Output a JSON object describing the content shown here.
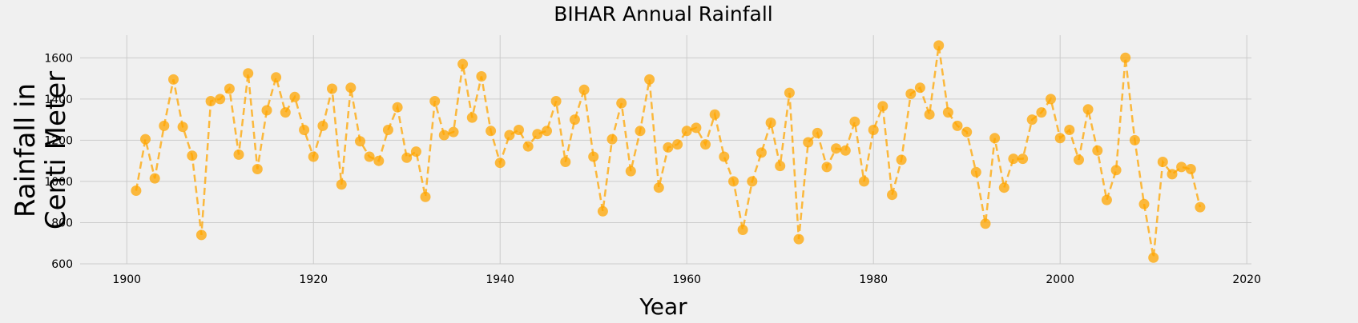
{
  "chart_data": {
    "type": "line",
    "title": "BIHAR Annual Rainfall",
    "xlabel": "Year",
    "ylabel_lines": [
      "Rainfall in",
      "Centi Meter"
    ],
    "xlim": [
      1895,
      2020.5
    ],
    "ylim": [
      600,
      1710
    ],
    "xticks": [
      1900,
      1920,
      1940,
      1960,
      1980,
      2000,
      2020
    ],
    "yticks": [
      600,
      800,
      1000,
      1200,
      1400,
      1600
    ],
    "grid": true,
    "line_style": "dashed",
    "marker": "circle",
    "color": "#ffa500",
    "series": [
      {
        "x": [
          1901,
          1902,
          1903,
          1904,
          1905,
          1906,
          1907,
          1908,
          1909,
          1910,
          1911,
          1912,
          1913,
          1914,
          1915,
          1916,
          1917,
          1918,
          1919,
          1920,
          1921,
          1922,
          1923,
          1924,
          1925,
          1926,
          1927,
          1928,
          1929,
          1930,
          1931,
          1932,
          1933,
          1934,
          1935,
          1936,
          1937,
          1938,
          1939,
          1940,
          1941,
          1942,
          1943,
          1944,
          1945,
          1946,
          1947,
          1948,
          1949,
          1950,
          1951,
          1952,
          1953,
          1954,
          1955,
          1956,
          1957,
          1958,
          1959,
          1960,
          1961,
          1962,
          1963,
          1964,
          1965,
          1966,
          1967,
          1968,
          1969,
          1970,
          1971,
          1972,
          1973,
          1974,
          1975,
          1976,
          1977,
          1978,
          1979,
          1980,
          1981,
          1982,
          1983,
          1984,
          1985,
          1986,
          1987,
          1988,
          1989,
          1990,
          1991,
          1992,
          1993,
          1994,
          1995,
          1996,
          1997,
          1998,
          1999,
          2000,
          2001,
          2002,
          2003,
          2004,
          2005,
          2006,
          2007,
          2008,
          2009,
          2010,
          2011,
          2012,
          2013,
          2014,
          2015
        ],
        "y": [
          955,
          1205,
          1015,
          1270,
          1495,
          1265,
          1125,
          740,
          1390,
          1400,
          1450,
          1130,
          1525,
          1060,
          1345,
          1505,
          1335,
          1410,
          1250,
          1120,
          1270,
          1450,
          985,
          1455,
          1195,
          1120,
          1100,
          1250,
          1360,
          1115,
          1145,
          925,
          1390,
          1225,
          1240,
          1570,
          1310,
          1510,
          1245,
          1090,
          1225,
          1250,
          1170,
          1230,
          1245,
          1390,
          1095,
          1300,
          1445,
          1120,
          855,
          1205,
          1380,
          1050,
          1245,
          1495,
          970,
          1165,
          1180,
          1245,
          1260,
          1180,
          1325,
          1120,
          1000,
          765,
          1000,
          1140,
          1285,
          1075,
          1430,
          720,
          1190,
          1235,
          1070,
          1160,
          1150,
          1290,
          1000,
          1250,
          1365,
          935,
          1105,
          1425,
          1455,
          1325,
          1660,
          1335,
          1270,
          1240,
          1045,
          795,
          1210,
          970,
          1110,
          1110,
          1300,
          1335,
          1400,
          1210,
          1250,
          1105,
          1350,
          1150,
          910,
          1055,
          1600,
          1200,
          890,
          630,
          1095,
          1035,
          1070,
          1060,
          875
        ]
      }
    ]
  }
}
